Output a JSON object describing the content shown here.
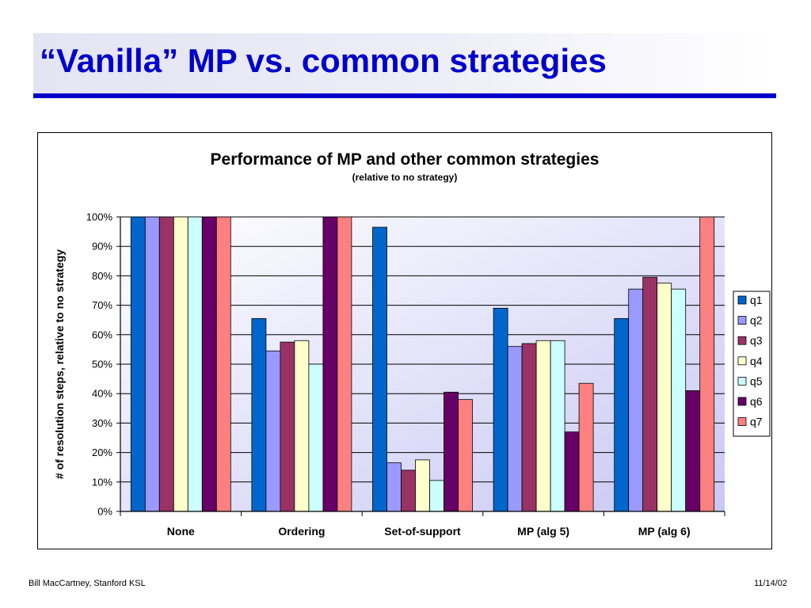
{
  "slide": {
    "title": "“Vanilla” MP vs. common strategies",
    "footer_left": "Bill MacCartney, Stanford KSL",
    "footer_right": "11/14/02",
    "title_color": "#0000cc"
  },
  "chart_data": {
    "type": "bar",
    "title": "Performance of MP and other common strategies",
    "subtitle": "(relative to no strategy)",
    "xlabel": "",
    "ylabel": "# of resolution steps, relative to no strategy",
    "ylim": [
      0,
      100
    ],
    "yticks": [
      "0%",
      "10%",
      "20%",
      "30%",
      "40%",
      "50%",
      "60%",
      "70%",
      "80%",
      "90%",
      "100%"
    ],
    "categories": [
      "None",
      "Ordering",
      "Set-of-support",
      "MP (alg 5)",
      "MP (alg 6)"
    ],
    "grid": true,
    "legend_position": "right",
    "series": [
      {
        "name": "q1",
        "color": "#0066cc",
        "values": [
          100,
          65.5,
          96.5,
          69,
          65.5
        ]
      },
      {
        "name": "q2",
        "color": "#9999ff",
        "values": [
          100,
          54.5,
          16.5,
          56,
          75.5
        ]
      },
      {
        "name": "q3",
        "color": "#993366",
        "values": [
          100,
          57.5,
          14,
          57,
          79.5
        ]
      },
      {
        "name": "q4",
        "color": "#ffffcc",
        "values": [
          100,
          58,
          17.5,
          58,
          77.5
        ]
      },
      {
        "name": "q5",
        "color": "#ccffff",
        "values": [
          100,
          50,
          10.5,
          58,
          75.5
        ]
      },
      {
        "name": "q6",
        "color": "#660066",
        "values": [
          100,
          100,
          40.5,
          27,
          41
        ]
      },
      {
        "name": "q7",
        "color": "#ff8080",
        "values": [
          100,
          100,
          38,
          43.5,
          100
        ]
      }
    ]
  }
}
